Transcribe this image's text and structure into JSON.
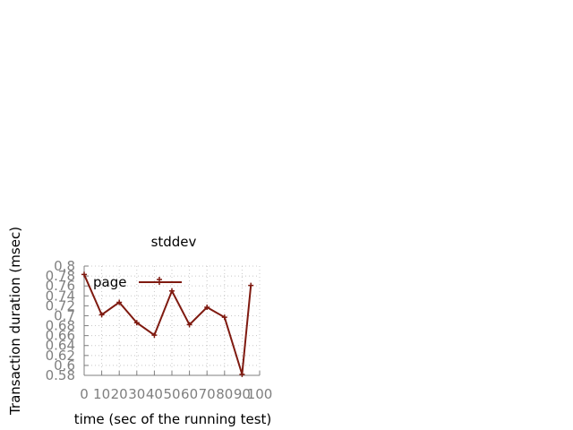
{
  "chart_data": {
    "type": "line",
    "title": "stddev",
    "xlabel": "time (sec of the running test)",
    "ylabel": "Transaction duration (msec)",
    "xlim": [
      0,
      100
    ],
    "ylim": [
      0.58,
      0.8
    ],
    "x_ticks": [
      0,
      10,
      20,
      30,
      40,
      50,
      60,
      70,
      80,
      90,
      100
    ],
    "y_ticks": [
      0.58,
      0.6,
      0.62,
      0.64,
      0.66,
      0.68,
      0.7,
      0.72,
      0.74,
      0.76,
      0.78,
      0.8
    ],
    "grid": true,
    "legend_position": "top-left",
    "series": [
      {
        "name": "page",
        "color": "#7f1a10",
        "marker": "plus",
        "x": [
          0,
          10,
          20,
          30,
          40,
          50,
          60,
          70,
          80,
          90,
          95
        ],
        "y": [
          0.783,
          0.702,
          0.727,
          0.686,
          0.661,
          0.75,
          0.682,
          0.717,
          0.697,
          0.582,
          0.761
        ]
      }
    ]
  }
}
